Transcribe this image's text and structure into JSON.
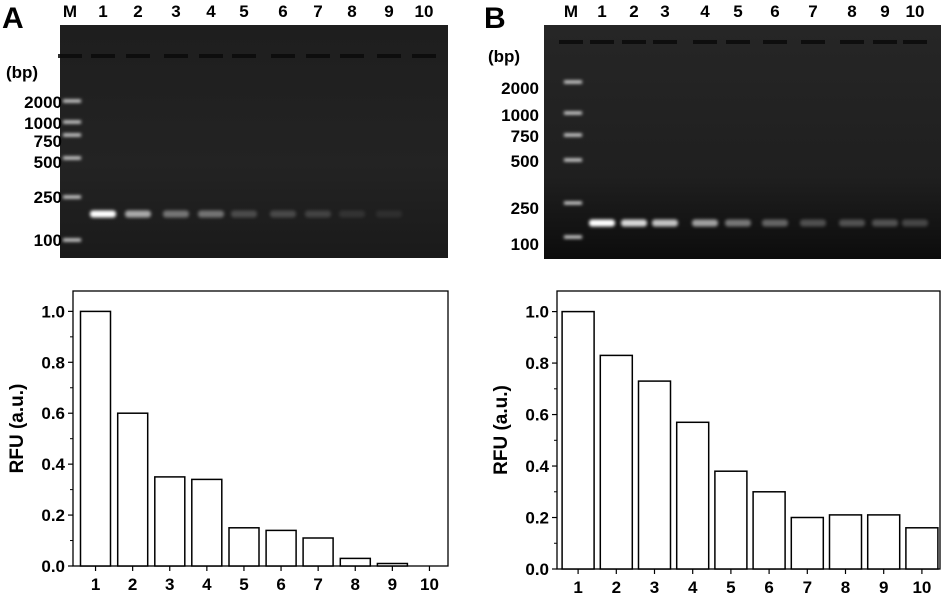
{
  "panels": [
    {
      "id": "A",
      "letter": "A",
      "gel": {
        "bp_unit": "(bp)",
        "lanes": [
          "M",
          "1",
          "2",
          "3",
          "4",
          "5",
          "6",
          "7",
          "8",
          "9",
          "10"
        ],
        "marker_labels": [
          {
            "text": "2000",
            "bp": 2000
          },
          {
            "text": "1000",
            "bp": 1000
          },
          {
            "text": "750",
            "bp": 750
          },
          {
            "text": "500",
            "bp": 500
          },
          {
            "text": "250",
            "bp": 250
          },
          {
            "text": "100",
            "bp": 100
          }
        ],
        "band_intensity": [
          1.0,
          0.6,
          0.35,
          0.34,
          0.15,
          0.14,
          0.11,
          0.03,
          0.01,
          0.0
        ]
      }
    },
    {
      "id": "B",
      "letter": "B",
      "gel": {
        "bp_unit": "(bp)",
        "lanes": [
          "M",
          "1",
          "2",
          "3",
          "4",
          "5",
          "6",
          "7",
          "8",
          "9",
          "10"
        ],
        "marker_labels": [
          {
            "text": "2000",
            "bp": 2000
          },
          {
            "text": "1000",
            "bp": 1000
          },
          {
            "text": "750",
            "bp": 750
          },
          {
            "text": "500",
            "bp": 500
          },
          {
            "text": "250",
            "bp": 250
          },
          {
            "text": "100",
            "bp": 100
          }
        ],
        "band_intensity": [
          1.0,
          0.83,
          0.73,
          0.57,
          0.38,
          0.3,
          0.2,
          0.21,
          0.21,
          0.16
        ]
      }
    }
  ],
  "chart_data": [
    {
      "panel": "A",
      "type": "bar",
      "categories": [
        "1",
        "2",
        "3",
        "4",
        "5",
        "6",
        "7",
        "8",
        "9",
        "10"
      ],
      "values": [
        1.0,
        0.6,
        0.35,
        0.34,
        0.15,
        0.14,
        0.11,
        0.03,
        0.01,
        0.0
      ],
      "title": "",
      "xlabel": "",
      "ylabel": "RFU (a.u.)",
      "ylim": [
        0,
        1.08
      ],
      "yticks": [
        "0.0",
        "0.2",
        "0.4",
        "0.6",
        "0.8",
        "1.0"
      ],
      "grid": false,
      "bar_fill": "#ffffff",
      "bar_stroke": "#000000"
    },
    {
      "panel": "B",
      "type": "bar",
      "categories": [
        "1",
        "2",
        "3",
        "4",
        "5",
        "6",
        "7",
        "8",
        "9",
        "10"
      ],
      "values": [
        1.0,
        0.83,
        0.73,
        0.57,
        0.38,
        0.3,
        0.2,
        0.21,
        0.21,
        0.16
      ],
      "title": "",
      "xlabel": "",
      "ylabel": "RFU (a.u.)",
      "ylim": [
        0,
        1.08
      ],
      "yticks": [
        "0.0",
        "0.2",
        "0.4",
        "0.6",
        "0.8",
        "1.0"
      ],
      "grid": false,
      "bar_fill": "#ffffff",
      "bar_stroke": "#000000"
    }
  ]
}
